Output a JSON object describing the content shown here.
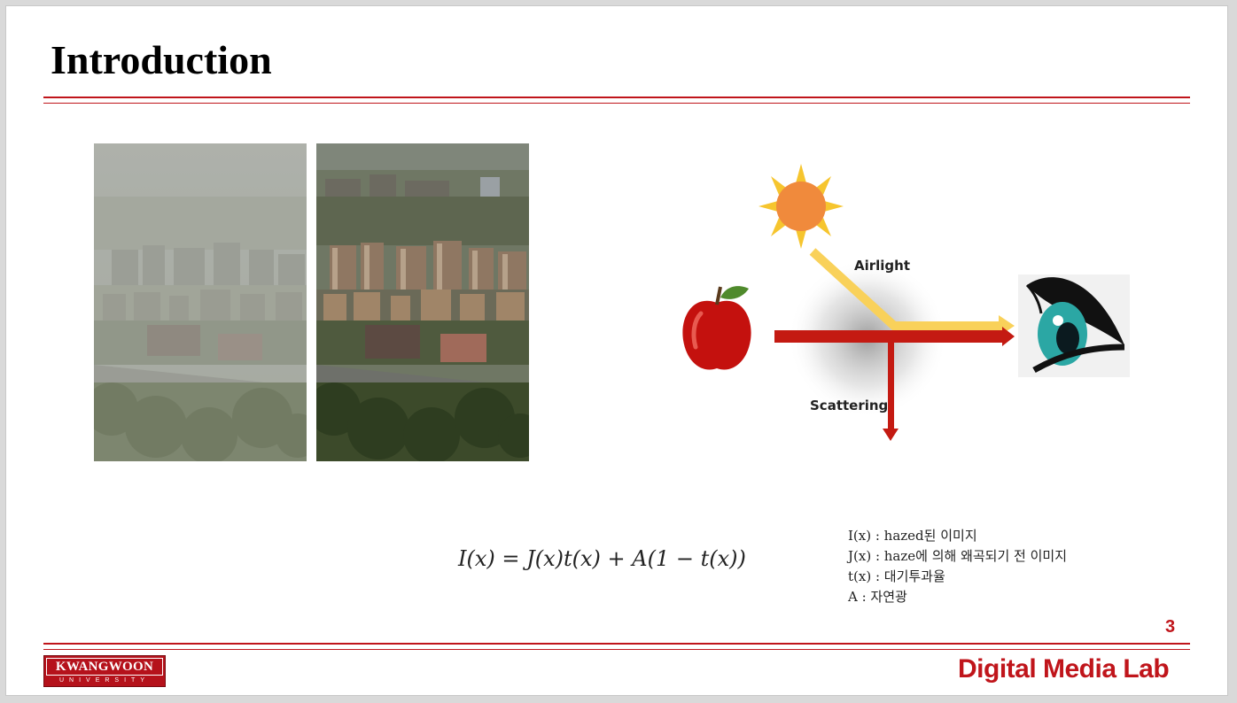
{
  "slide": {
    "title": "Introduction",
    "page_number": "3",
    "lab_name": "Digital Media Lab",
    "logo": {
      "name": "KWANGWOON",
      "subtitle": "UNIVERSITY"
    }
  },
  "diagram": {
    "airlight_label": "Airlight",
    "scattering_label": "Scattering",
    "icons": [
      "sun-icon",
      "apple-icon",
      "eye-icon"
    ],
    "colors": {
      "sun": "#f08a3c",
      "ray": "#f9d15a",
      "direct": "#c41a12"
    }
  },
  "formula": "I(x) = J(x)t(x) + A(1 − t(x))",
  "legend": [
    "I(x) : hazed된 이미지",
    "J(x) : haze에 의해 왜곡되기 전 이미지",
    "t(x) : 대기투과율",
    "A : 자연광"
  ],
  "images": {
    "hazy": "hazy-city-photo",
    "clear": "dehazed-city-photo"
  }
}
